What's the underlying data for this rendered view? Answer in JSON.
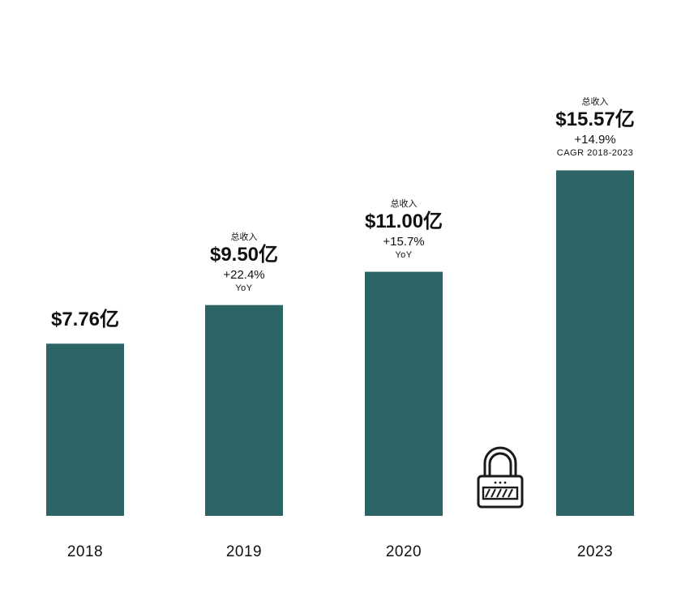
{
  "chart_data": {
    "type": "bar",
    "categories": [
      "2018",
      "2019",
      "2020",
      "2023"
    ],
    "values": [
      7.76,
      9.5,
      11.0,
      15.57
    ],
    "ylim": [
      0,
      20.0
    ],
    "bar_color": "#2d6566",
    "annotations": [
      {
        "category": "2018",
        "label": "",
        "value_text": "$7.76亿",
        "change": "",
        "basis": ""
      },
      {
        "category": "2019",
        "label": "总收入",
        "value_text": "$9.50亿",
        "change": "+22.4%",
        "basis": "YoY"
      },
      {
        "category": "2020",
        "label": "总收入",
        "value_text": "$11.00亿",
        "change": "+15.7%",
        "basis": "YoY"
      },
      {
        "category": "2023",
        "label": "总收入",
        "value_text": "$15.57亿",
        "change": "+14.9%",
        "basis": "CAGR 2018-2023"
      }
    ],
    "title": "",
    "xlabel": "",
    "ylabel": ""
  },
  "icons": {
    "lock": "lock-icon"
  }
}
